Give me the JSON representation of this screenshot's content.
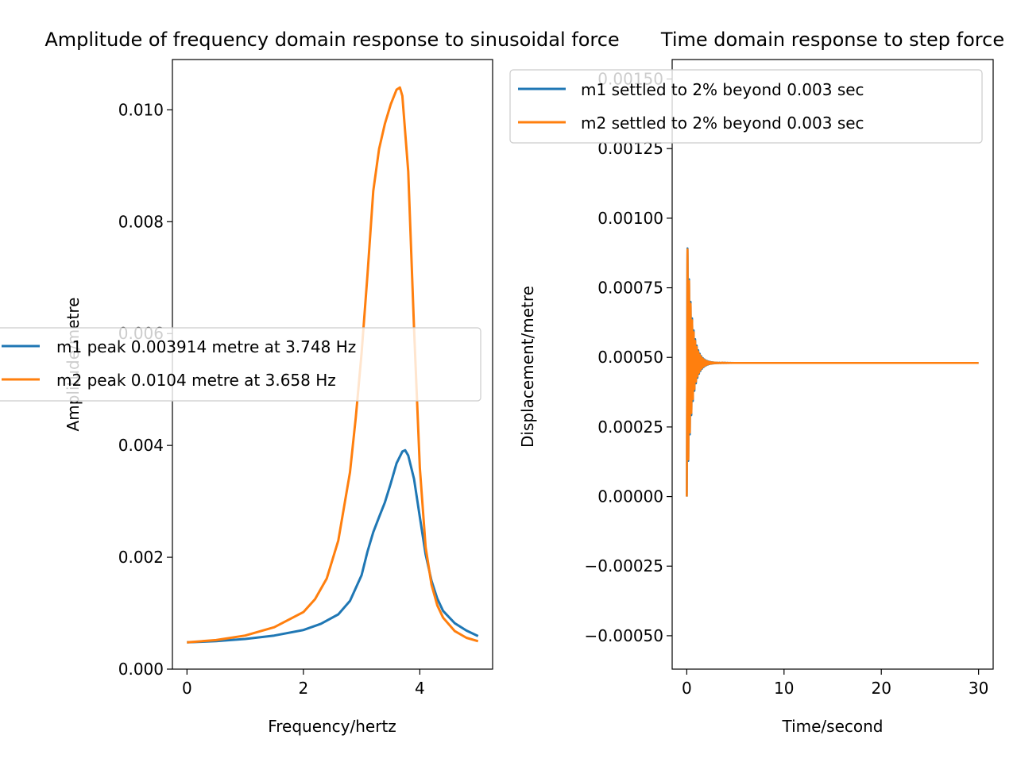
{
  "colors": {
    "series1": "#1f77b4",
    "series2": "#ff7f0e"
  },
  "chart_data": [
    {
      "type": "line",
      "title": "Amplitude of frequency domain response to sinusoidal force",
      "xlabel": "Frequency/hertz",
      "ylabel": "Amplitude/metre",
      "xlim": [
        -0.25,
        5.25
      ],
      "ylim": [
        0,
        0.0109
      ],
      "xticks": [
        0,
        2,
        4
      ],
      "xtick_labels": [
        "0",
        "2",
        "4"
      ],
      "yticks": [
        0,
        0.002,
        0.004,
        0.006,
        0.008,
        0.01
      ],
      "ytick_labels": [
        "0.000",
        "0.002",
        "0.004",
        "0.006",
        "0.008",
        "0.010"
      ],
      "grid": false,
      "legend_position": "center-left",
      "series": [
        {
          "name": "m1 peak 0.003914 metre at 3.748 Hz",
          "x": [
            0,
            0.5,
            1.0,
            1.5,
            2.0,
            2.3,
            2.6,
            2.8,
            3.0,
            3.1,
            3.2,
            3.3,
            3.4,
            3.5,
            3.6,
            3.7,
            3.748,
            3.8,
            3.9,
            4.0,
            4.1,
            4.2,
            4.3,
            4.4,
            4.6,
            4.8,
            5.0
          ],
          "y": [
            0.00048,
            0.0005,
            0.00054,
            0.0006,
            0.0007,
            0.00081,
            0.00098,
            0.00122,
            0.00168,
            0.0021,
            0.00245,
            0.00272,
            0.00298,
            0.00332,
            0.00368,
            0.00389,
            0.003914,
            0.00382,
            0.0034,
            0.00272,
            0.00205,
            0.00158,
            0.00126,
            0.00104,
            0.00082,
            0.00069,
            0.00059
          ]
        },
        {
          "name": "m2 peak 0.0104 metre at 3.658 Hz",
          "x": [
            0,
            0.5,
            1.0,
            1.5,
            2.0,
            2.2,
            2.4,
            2.6,
            2.8,
            2.9,
            3.0,
            3.1,
            3.2,
            3.3,
            3.4,
            3.5,
            3.6,
            3.658,
            3.7,
            3.8,
            3.9,
            4.0,
            4.1,
            4.2,
            4.3,
            4.4,
            4.6,
            4.8,
            5.0
          ],
          "y": [
            0.00048,
            0.00052,
            0.0006,
            0.00075,
            0.00102,
            0.00125,
            0.00162,
            0.0023,
            0.00352,
            0.0045,
            0.00565,
            0.00705,
            0.00855,
            0.0093,
            0.00975,
            0.0101,
            0.01036,
            0.0104,
            0.01025,
            0.0089,
            0.0061,
            0.0036,
            0.00218,
            0.00151,
            0.00114,
            0.00092,
            0.00068,
            0.00056,
            0.0005
          ]
        }
      ]
    },
    {
      "type": "line",
      "title": "Time domain response to step force",
      "xlabel": "Time/second",
      "ylabel": "Displacement/metre",
      "xlim": [
        -1.5,
        31.5
      ],
      "ylim": [
        -0.00062,
        0.00157
      ],
      "xticks": [
        0,
        10,
        20,
        30
      ],
      "xtick_labels": [
        "0",
        "10",
        "20",
        "30"
      ],
      "yticks": [
        -0.0005,
        -0.00025,
        0,
        0.00025,
        0.0005,
        0.00075,
        0.001,
        0.00125,
        0.0015
      ],
      "ytick_labels": [
        "−0.00050",
        "−0.00025",
        "0.00000",
        "0.00025",
        "0.00050",
        "0.00075",
        "0.00100",
        "0.00125",
        "0.00150"
      ],
      "grid": false,
      "legend_position": "top-right",
      "steady_value": 0.00048,
      "series": [
        {
          "name": "m1 settled to 2% beyond 0.003 sec"
        },
        {
          "name": "m2 settled to 2% beyond 0.003 sec"
        }
      ]
    }
  ]
}
